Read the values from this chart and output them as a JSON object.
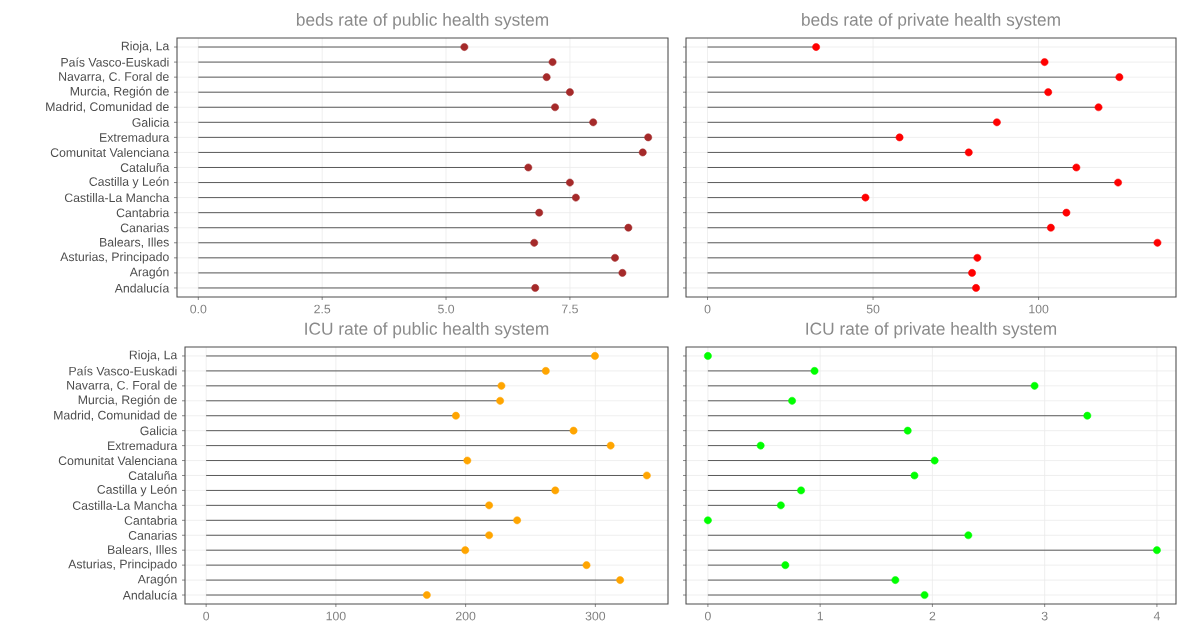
{
  "chart_data": [
    {
      "type": "lollipop",
      "orientation": "horizontal",
      "title": "beds rate of public health system",
      "categories": [
        "Rioja, La",
        "País Vasco-Euskadi",
        "Navarra, C. Foral de",
        "Murcia, Región de",
        "Madrid, Comunidad de",
        "Galicia",
        "Extremadura",
        "Comunitat Valenciana",
        "Cataluña",
        "Castilla y León",
        "Castilla-La Mancha",
        "Cantabria",
        "Canarias",
        "Balears, Illes",
        "Asturias, Principado",
        "Aragón",
        "Andalucía"
      ],
      "values": [
        5.37,
        7.15,
        7.03,
        7.5,
        7.2,
        7.97,
        9.08,
        8.97,
        6.66,
        7.5,
        7.62,
        6.88,
        8.68,
        6.78,
        8.41,
        8.56,
        6.8
      ],
      "color": "#a52a2a",
      "marker": "circle",
      "grid": true,
      "xlim": [
        -0.43,
        9.48
      ],
      "xticks": [
        {
          "value": 0,
          "label": "0.0"
        },
        2.5,
        {
          "value": 5,
          "label": "5.0"
        },
        7.5
      ]
    },
    {
      "type": "lollipop",
      "orientation": "horizontal",
      "title": "beds rate of private health system",
      "categories": [
        null,
        null,
        null,
        null,
        null,
        null,
        null,
        null,
        null,
        null,
        null,
        null,
        null,
        null,
        null,
        null,
        null
      ],
      "values": [
        32.8,
        101.8,
        124.4,
        102.9,
        118.1,
        87.4,
        58.0,
        78.9,
        111.4,
        124.0,
        47.7,
        108.4,
        103.7,
        135.9,
        81.5,
        79.9,
        81.1
      ],
      "color": "#ff0000",
      "marker": "circle",
      "grid": true,
      "tick_labels": "x",
      "xlim": [
        -6.5,
        141.5
      ],
      "xticks": [
        0,
        50,
        100
      ]
    },
    {
      "type": "lollipop",
      "orientation": "horizontal",
      "title": "ICU rate of public health system",
      "categories": [
        "Rioja, La",
        "País Vasco-Euskadi",
        "Navarra, C. Foral de",
        "Murcia, Región de",
        "Madrid, Comunidad de",
        "Galicia",
        "Extremadura",
        "Comunitat Valenciana",
        "Cataluña",
        "Castilla y León",
        "Castilla-La Mancha",
        "Cantabria",
        "Canarias",
        "Balears, Illes",
        "Asturias, Principado",
        "Aragón",
        "Andalucía"
      ],
      "values": [
        299.7,
        261.8,
        227.6,
        226.6,
        192.5,
        283.2,
        311.8,
        201.3,
        339.7,
        269.1,
        218.1,
        239.7,
        218.1,
        199.7,
        293.2,
        319.1,
        170.1
      ],
      "color": "#ffa500",
      "marker": "circle",
      "grid": true,
      "xlim": [
        -16.3,
        356
      ],
      "xticks": [
        0,
        100,
        200,
        300
      ]
    },
    {
      "type": "lollipop",
      "orientation": "horizontal",
      "title": "ICU rate of private health system",
      "categories": [
        null,
        null,
        null,
        null,
        null,
        null,
        null,
        null,
        null,
        null,
        null,
        null,
        null,
        null,
        null,
        null,
        null
      ],
      "values": [
        0,
        0.95,
        2.91,
        0.75,
        3.38,
        1.78,
        0.47,
        2.02,
        1.84,
        0.83,
        0.65,
        0,
        2.32,
        4.0,
        0.69,
        1.67,
        1.93
      ],
      "color": "#00ff00",
      "marker": "circle",
      "grid": true,
      "tick_labels": "x",
      "xlim": [
        -0.195,
        4.17
      ],
      "xticks": [
        0,
        1,
        2,
        3,
        4
      ]
    }
  ]
}
